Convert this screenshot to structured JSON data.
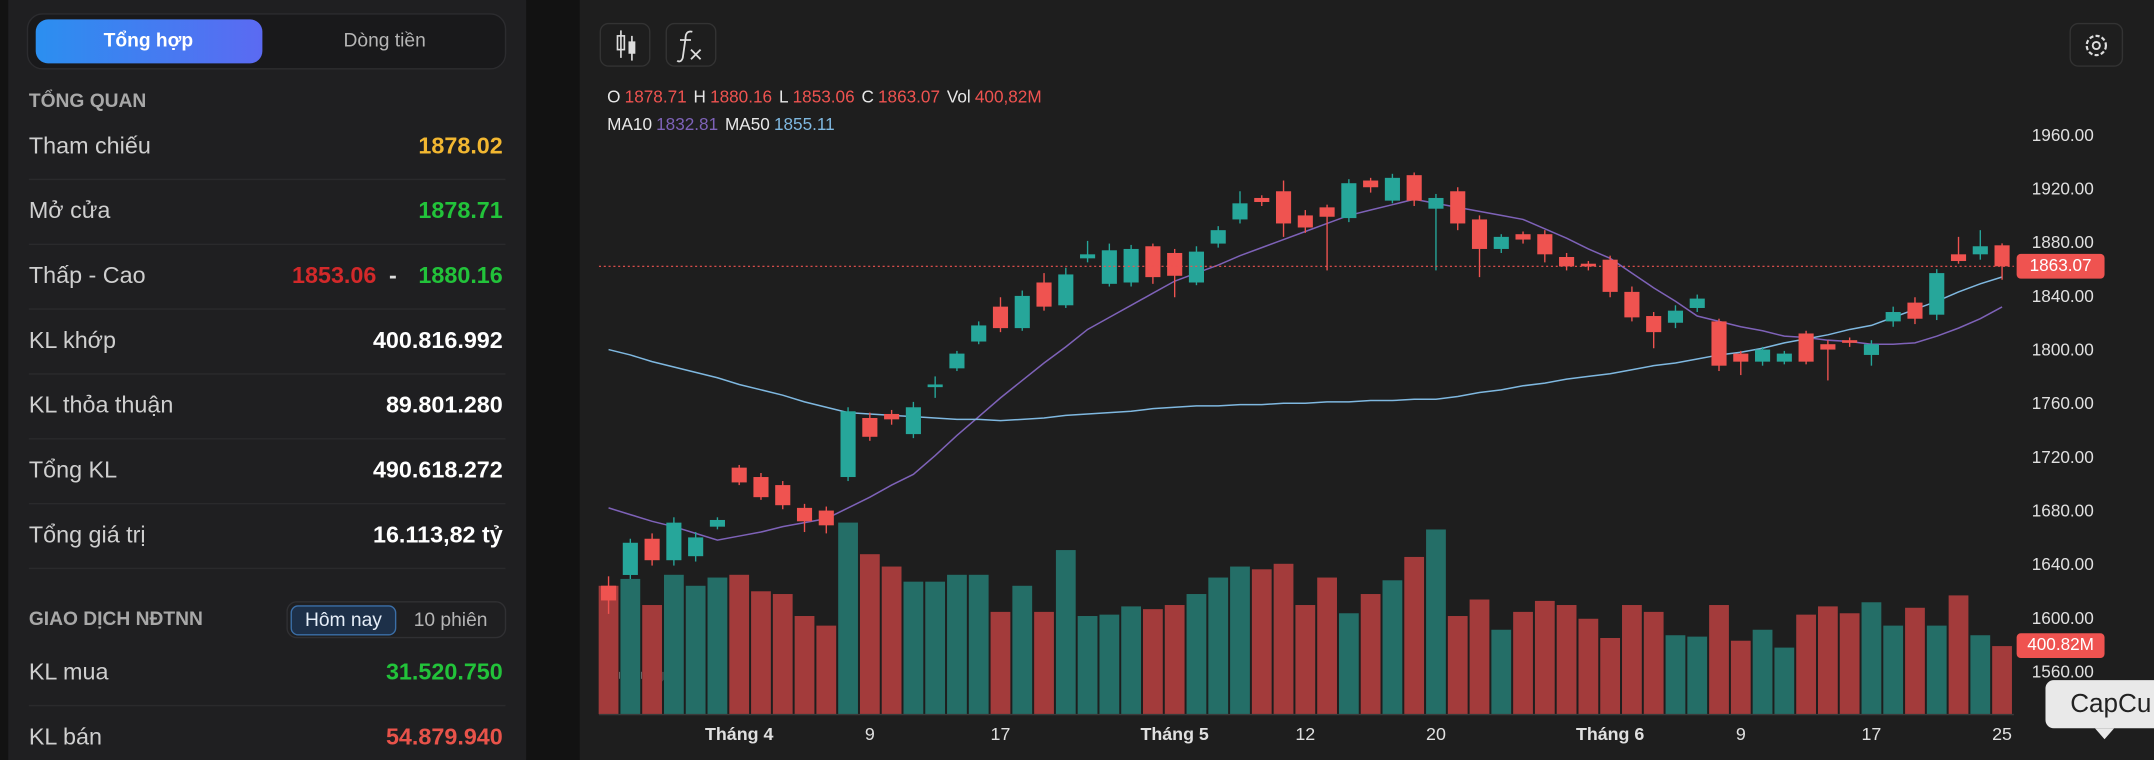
{
  "sidebar": {
    "tabs": [
      "Tổng hợp",
      "Dòng tiền"
    ],
    "overview_title": "TỔNG QUAN",
    "overview": [
      {
        "label": "Tham chiếu",
        "value": "1878.02",
        "color": "#f2b731"
      },
      {
        "label": "Mở cửa",
        "value": "1878.71",
        "color": "#22c33a"
      },
      {
        "label": "Thấp - Cao",
        "low": "1853.06",
        "separator": "-",
        "high": "1880.16",
        "low_color": "#d3292a",
        "high_color": "#22c33a"
      },
      {
        "label": "KL khớp",
        "value": "400.816.992",
        "color": "#ffffff"
      },
      {
        "label": "KL thỏa thuận",
        "value": "89.801.280",
        "color": "#ffffff"
      },
      {
        "label": "Tổng KL",
        "value": "490.618.272",
        "color": "#ffffff"
      },
      {
        "label": "Tổng giá trị",
        "value": "16.113,82 tỷ",
        "color": "#ffffff"
      }
    ],
    "foreign_title": "GIAO DỊCH NĐTNN",
    "periods": [
      "Hôm nay",
      "10 phiên"
    ],
    "foreign": [
      {
        "label": "KL mua",
        "value": "31.520.750",
        "color": "#22c33a"
      },
      {
        "label": "KL bán",
        "value": "54.879.940",
        "color": "#e8534a"
      }
    ]
  },
  "tooltip": "CapCu",
  "chart_data": {
    "type": "candlestick",
    "categories": [
      null,
      null,
      null,
      null,
      null,
      null,
      "Tháng 4",
      null,
      null,
      null,
      null,
      null,
      "9",
      null,
      null,
      null,
      null,
      null,
      "17",
      null,
      null,
      null,
      null,
      null,
      null,
      null,
      "Tháng 5",
      null,
      null,
      null,
      null,
      null,
      "12",
      null,
      null,
      null,
      null,
      null,
      "20",
      null,
      null,
      null,
      null,
      null,
      null,
      null,
      "Tháng 6",
      null,
      null,
      null,
      null,
      null,
      "9",
      null,
      null,
      null,
      null,
      null,
      "17",
      null,
      null,
      null,
      null,
      null,
      "25"
    ],
    "open": [
      1625,
      1633,
      1660,
      1644,
      1647,
      1669,
      1713,
      1706,
      1700,
      1683,
      1681,
      1706,
      1750,
      1753,
      1738,
      1773,
      1787,
      1807,
      1833,
      1817,
      1851,
      1834,
      1869,
      1850,
      1851,
      1878,
      1873,
      1851,
      1880,
      1898,
      1914,
      1919,
      1901,
      1907,
      1899,
      1927,
      1912,
      1931,
      1906,
      1919,
      1898,
      1876,
      1887,
      1887,
      1870,
      1865,
      1868,
      1844,
      1826,
      1821,
      1832,
      1822,
      1798,
      1792,
      1792,
      1813,
      1805,
      1808,
      1797,
      1822,
      1836,
      1827,
      1872,
      1872,
      1878.71
    ],
    "high": [
      1632,
      1660,
      1664,
      1676,
      1665,
      1676,
      1715,
      1709,
      1703,
      1686,
      1684,
      1758,
      1754,
      1756,
      1762,
      1781,
      1800,
      1822,
      1840,
      1845,
      1858,
      1862,
      1882,
      1880,
      1879,
      1880,
      1876,
      1878,
      1893,
      1919,
      1916,
      1927,
      1905,
      1909,
      1928,
      1929,
      1932,
      1933,
      1917,
      1922,
      1901,
      1887,
      1889,
      1890,
      1873,
      1867,
      1871,
      1848,
      1829,
      1834,
      1842,
      1824,
      1800,
      1803,
      1800,
      1815,
      1808,
      1810,
      1808,
      1833,
      1840,
      1861,
      1885,
      1890,
      1880.16
    ],
    "low": [
      1604,
      1630,
      1640,
      1640,
      1643,
      1667,
      1700,
      1689,
      1682,
      1665,
      1664,
      1703,
      1733,
      1745,
      1735,
      1765,
      1785,
      1805,
      1814,
      1815,
      1830,
      1832,
      1866,
      1848,
      1848,
      1850,
      1840,
      1849,
      1877,
      1895,
      1908,
      1885,
      1888,
      1860,
      1896,
      1918,
      1910,
      1908,
      1860,
      1890,
      1855,
      1873,
      1880,
      1866,
      1860,
      1860,
      1840,
      1822,
      1802,
      1817,
      1829,
      1785,
      1782,
      1789,
      1790,
      1790,
      1778,
      1803,
      1789,
      1818,
      1820,
      1823,
      1865,
      1868,
      1853.06
    ],
    "close": [
      1614,
      1657,
      1644,
      1672,
      1661,
      1674,
      1702,
      1691,
      1685,
      1673,
      1670,
      1755,
      1736,
      1749,
      1758,
      1775,
      1798,
      1819,
      1817,
      1841,
      1833,
      1857,
      1872,
      1875,
      1876,
      1855,
      1856,
      1874,
      1890,
      1910,
      1911,
      1895,
      1892,
      1900,
      1925,
      1922,
      1929,
      1912,
      1914,
      1895,
      1876,
      1885,
      1883,
      1872,
      1863,
      1863,
      1844,
      1825,
      1814,
      1830,
      1839,
      1789,
      1792,
      1801,
      1798,
      1792,
      1801,
      1806,
      1805,
      1829,
      1824,
      1858,
      1867,
      1878,
      1863.07
    ],
    "volume": [
      752,
      792,
      640,
      816,
      752,
      800,
      816,
      720,
      704,
      576,
      520,
      1120,
      936,
      864,
      776,
      776,
      816,
      816,
      600,
      752,
      600,
      960,
      576,
      584,
      632,
      616,
      640,
      704,
      800,
      864,
      848,
      880,
      640,
      800,
      592,
      704,
      784,
      920,
      1080,
      576,
      672,
      496,
      600,
      664,
      640,
      560,
      448,
      640,
      600,
      464,
      456,
      640,
      432,
      496,
      392,
      584,
      632,
      592,
      656,
      520,
      624,
      520,
      696,
      464,
      400.82
    ],
    "volume_label": "400,82M",
    "volume_axis_label": "400.82M",
    "ohlc_labels": [
      "O",
      "H",
      "L",
      "C",
      "Vol"
    ],
    "series": [
      {
        "name": "MA10",
        "color": "#7e62b8",
        "values": [
          1683,
          1678,
          1673,
          1669,
          1664,
          1659,
          1662,
          1665,
          1669,
          1672,
          1675,
          1683,
          1691,
          1700,
          1708,
          1722,
          1737,
          1751,
          1765,
          1778,
          1791,
          1803,
          1816,
          1825,
          1834,
          1843,
          1852,
          1858,
          1864,
          1871,
          1877,
          1883,
          1889,
          1895,
          1901,
          1905,
          1909,
          1913,
          1910,
          1907,
          1904,
          1901,
          1898,
          1891,
          1884,
          1876,
          1869,
          1858,
          1847,
          1837,
          1826,
          1822,
          1818,
          1815,
          1811,
          1810,
          1808,
          1807,
          1805,
          1805,
          1806,
          1811,
          1817,
          1824,
          1832.81
        ]
      },
      {
        "name": "MA50",
        "color": "#7fb8e0",
        "values": [
          1801,
          1797,
          1792,
          1788,
          1784,
          1780,
          1775,
          1771,
          1767,
          1762,
          1758,
          1754,
          1753,
          1752,
          1751,
          1750,
          1749,
          1749,
          1748,
          1749,
          1750,
          1752,
          1753,
          1754,
          1755,
          1757,
          1758,
          1759,
          1759,
          1760,
          1760,
          1761,
          1761,
          1762,
          1762,
          1763,
          1763,
          1764,
          1764,
          1766,
          1769,
          1771,
          1774,
          1776,
          1779,
          1781,
          1783,
          1786,
          1789,
          1791,
          1794,
          1797,
          1799,
          1802,
          1806,
          1809,
          1812,
          1816,
          1819,
          1825,
          1831,
          1837,
          1844,
          1850,
          1855.11
        ]
      }
    ],
    "up_color": "#26a69a",
    "down_color": "#ef5350",
    "volume_up_color": "#246e67",
    "volume_down_color": "#a33b3b",
    "ylim": [
      1529,
      2000
    ],
    "yticks": [
      {
        "value": 1960,
        "label": "1960.00"
      },
      {
        "value": 1920,
        "label": "1920.00"
      },
      {
        "value": 1880,
        "label": "1880.00"
      },
      {
        "value": 1840,
        "label": "1840.00"
      },
      {
        "value": 1800,
        "label": "1800.00"
      },
      {
        "value": 1760,
        "label": "1760.00"
      },
      {
        "value": 1720,
        "label": "1720.00"
      },
      {
        "value": 1680,
        "label": "1680.00"
      },
      {
        "value": 1640,
        "label": "1640.00"
      },
      {
        "value": 1600,
        "label": "1600.00"
      },
      {
        "value": 1560,
        "label": "1560.00"
      }
    ],
    "grid": false
  }
}
